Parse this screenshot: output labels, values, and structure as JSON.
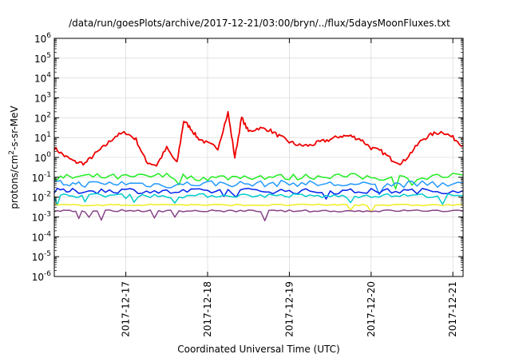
{
  "chart_data": {
    "type": "line",
    "title": "/data/run/goesPlots/archive/2017-12-21/03:00/bryn/../flux/5daysMoonFluxes.txt",
    "xlabel": "Coordinated Universal Time (UTC)",
    "ylabel_parts": [
      "protons/cm",
      "2",
      "-s-sr-MeV"
    ],
    "yscale": "log",
    "ylim": [
      1e-06,
      1000000.0
    ],
    "xlim_days": [
      "2017-12-16T03:00",
      "2017-12-21T03:00"
    ],
    "y_ticks": [
      {
        "base": "10",
        "exp": "-6",
        "value": -6
      },
      {
        "base": "10",
        "exp": "-5",
        "value": -5
      },
      {
        "base": "10",
        "exp": "-4",
        "value": -4
      },
      {
        "base": "10",
        "exp": "-3",
        "value": -3
      },
      {
        "base": "10",
        "exp": "-2",
        "value": -2
      },
      {
        "base": "10",
        "exp": "-1",
        "value": -1
      },
      {
        "base": "10",
        "exp": "0",
        "value": 0
      },
      {
        "base": "10",
        "exp": "1",
        "value": 1
      },
      {
        "base": "10",
        "exp": "2",
        "value": 2
      },
      {
        "base": "10",
        "exp": "3",
        "value": 3
      },
      {
        "base": "10",
        "exp": "4",
        "value": 4
      },
      {
        "base": "10",
        "exp": "5",
        "value": 5
      },
      {
        "base": "10",
        "exp": "6",
        "value": 6
      }
    ],
    "x_ticks": [
      {
        "label": "2017-12-17",
        "date": "2017-12-17T00:00"
      },
      {
        "label": "2017-12-18",
        "date": "2017-12-18T00:00"
      },
      {
        "label": "2017-12-19",
        "date": "2017-12-19T00:00"
      },
      {
        "label": "2017-12-20",
        "date": "2017-12-20T00:00"
      },
      {
        "label": "2017-12-21",
        "date": "2017-12-21T00:00"
      }
    ],
    "grid": true,
    "series": [
      {
        "color": "#ee0000",
        "x": [
          "2017-12-16T03:00",
          "2017-12-16T06:00",
          "2017-12-16T09:00",
          "2017-12-16T12:00",
          "2017-12-16T15:00",
          "2017-12-16T18:00",
          "2017-12-16T21:00",
          "2017-12-17T00:00",
          "2017-12-17T03:00",
          "2017-12-17T06:00",
          "2017-12-17T09:00",
          "2017-12-17T12:00",
          "2017-12-17T15:00",
          "2017-12-17T17:00",
          "2017-12-17T19:00",
          "2017-12-17T21:00",
          "2017-12-18T00:00",
          "2017-12-18T03:00",
          "2017-12-18T06:00",
          "2017-12-18T08:00",
          "2017-12-18T10:00",
          "2017-12-18T12:00",
          "2017-12-18T15:00",
          "2017-12-18T18:00",
          "2017-12-18T21:00",
          "2017-12-19T00:00",
          "2017-12-19T03:00",
          "2017-12-19T06:00",
          "2017-12-19T09:00",
          "2017-12-19T12:00",
          "2017-12-19T15:00",
          "2017-12-19T18:00",
          "2017-12-19T21:00",
          "2017-12-20T00:00",
          "2017-12-20T03:00",
          "2017-12-20T06:00",
          "2017-12-20T09:00",
          "2017-12-20T12:00",
          "2017-12-20T15:00",
          "2017-12-20T18:00",
          "2017-12-20T21:00",
          "2017-12-21T00:00",
          "2017-12-21T03:00"
        ],
        "y": [
          3,
          1.2,
          0.6,
          0.5,
          1.5,
          4,
          12,
          18,
          8,
          0.6,
          0.4,
          3,
          0.5,
          70,
          30,
          10,
          5,
          3,
          180,
          1,
          100,
          20,
          30,
          25,
          12,
          6,
          4,
          4,
          6,
          8,
          12,
          12,
          8,
          3,
          2,
          0.8,
          0.5,
          2,
          8,
          15,
          20,
          10,
          4
        ]
      },
      {
        "color": "#22ee22",
        "x": [
          "2017-12-16T03:00",
          "2017-12-16T12:00",
          "2017-12-17T00:00",
          "2017-12-17T12:00",
          "2017-12-18T00:00",
          "2017-12-18T12:00",
          "2017-12-19T00:00",
          "2017-12-19T12:00",
          "2017-12-20T00:00",
          "2017-12-20T12:00",
          "2017-12-21T03:00"
        ],
        "y": [
          0.09,
          0.11,
          0.1,
          0.12,
          0.09,
          0.11,
          0.1,
          0.12,
          0.1,
          0.09,
          0.13
        ]
      },
      {
        "color": "#2299ff",
        "x": [
          "2017-12-16T03:00",
          "2017-12-16T12:00",
          "2017-12-17T00:00",
          "2017-12-17T12:00",
          "2017-12-18T00:00",
          "2017-12-18T12:00",
          "2017-12-19T00:00",
          "2017-12-19T12:00",
          "2017-12-20T00:00",
          "2017-12-20T12:00",
          "2017-12-21T03:00"
        ],
        "y": [
          0.05,
          0.045,
          0.05,
          0.04,
          0.05,
          0.045,
          0.05,
          0.045,
          0.04,
          0.045,
          0.05
        ]
      },
      {
        "color": "#0022ee",
        "x": [
          "2017-12-16T03:00",
          "2017-12-16T12:00",
          "2017-12-17T00:00",
          "2017-12-17T12:00",
          "2017-12-18T00:00",
          "2017-12-18T12:00",
          "2017-12-19T00:00",
          "2017-12-19T12:00",
          "2017-12-20T00:00",
          "2017-12-20T12:00",
          "2017-12-21T03:00"
        ],
        "y": [
          0.02,
          0.02,
          0.022,
          0.018,
          0.02,
          0.021,
          0.02,
          0.019,
          0.02,
          0.02,
          0.021
        ]
      },
      {
        "color": "#00cccc",
        "x": [
          "2017-12-16T03:00",
          "2017-12-16T12:00",
          "2017-12-17T00:00",
          "2017-12-17T12:00",
          "2017-12-18T00:00",
          "2017-12-18T12:00",
          "2017-12-19T00:00",
          "2017-12-19T12:00",
          "2017-12-20T00:00",
          "2017-12-20T12:00",
          "2017-12-21T03:00"
        ],
        "y": [
          0.012,
          0.012,
          0.013,
          0.011,
          0.012,
          0.012,
          0.012,
          0.011,
          0.012,
          0.012,
          0.012
        ]
      },
      {
        "color": "#eeee22",
        "x": [
          "2017-12-16T03:00",
          "2017-12-16T12:00",
          "2017-12-17T00:00",
          "2017-12-17T12:00",
          "2017-12-18T00:00",
          "2017-12-18T12:00",
          "2017-12-19T00:00",
          "2017-12-19T12:00",
          "2017-12-20T00:00",
          "2017-12-20T12:00",
          "2017-12-21T03:00"
        ],
        "y": [
          0.004,
          0.004,
          0.004,
          0.0042,
          0.004,
          0.004,
          0.004,
          0.0041,
          0.004,
          0.004,
          0.004
        ]
      },
      {
        "color": "#884488",
        "x": [
          "2017-12-16T03:00",
          "2017-12-16T12:00",
          "2017-12-17T00:00",
          "2017-12-17T12:00",
          "2017-12-18T00:00",
          "2017-12-18T12:00",
          "2017-12-19T00:00",
          "2017-12-19T12:00",
          "2017-12-20T00:00",
          "2017-12-20T12:00",
          "2017-12-21T03:00"
        ],
        "y": [
          0.002,
          0.002,
          0.0021,
          0.002,
          0.002,
          0.002,
          0.002,
          0.002,
          0.002,
          0.0021,
          0.002
        ]
      }
    ]
  }
}
